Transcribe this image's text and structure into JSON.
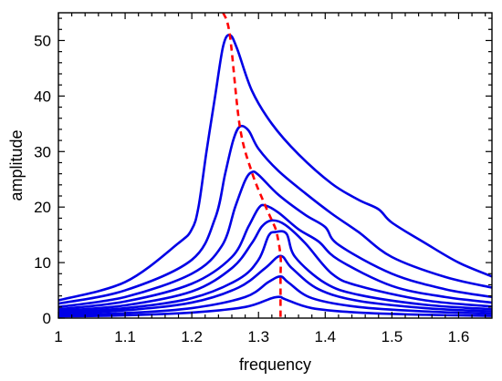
{
  "chart_data": {
    "type": "line",
    "title": "",
    "xlabel": "frequency",
    "ylabel": "amplitude",
    "xlim": [
      1.0,
      1.65
    ],
    "ylim": [
      0,
      55
    ],
    "x_ticks": [
      1,
      1.1,
      1.2,
      1.3,
      1.4,
      1.5,
      1.6
    ],
    "x_tick_labels": [
      "1",
      "1.1",
      "1.2",
      "1.3",
      "1.4",
      "1.5",
      "1.6"
    ],
    "y_ticks": [
      0,
      10,
      20,
      30,
      40,
      50
    ],
    "y_tick_labels": [
      "0",
      "10",
      "20",
      "30",
      "40",
      "50"
    ],
    "grid": false,
    "legend": "none",
    "colors": {
      "curves": "#0000e6",
      "backbone": "#ff0000"
    },
    "series": [
      {
        "points": [
          [
            1.0,
            0.3
          ],
          [
            1.1,
            0.5
          ],
          [
            1.2,
            1.0
          ],
          [
            1.28,
            2.0
          ],
          [
            1.32,
            3.6
          ],
          [
            1.333,
            3.8
          ],
          [
            1.34,
            3.4
          ],
          [
            1.38,
            1.8
          ],
          [
            1.45,
            1.0
          ],
          [
            1.55,
            0.6
          ],
          [
            1.65,
            0.4
          ]
        ]
      },
      {
        "points": [
          [
            1.0,
            0.5
          ],
          [
            1.1,
            0.9
          ],
          [
            1.2,
            1.8
          ],
          [
            1.28,
            3.8
          ],
          [
            1.315,
            6.5
          ],
          [
            1.333,
            7.5
          ],
          [
            1.345,
            6.4
          ],
          [
            1.38,
            3.6
          ],
          [
            1.45,
            2.0
          ],
          [
            1.55,
            1.2
          ],
          [
            1.65,
            0.8
          ]
        ]
      },
      {
        "points": [
          [
            1.0,
            0.8
          ],
          [
            1.1,
            1.4
          ],
          [
            1.2,
            2.8
          ],
          [
            1.27,
            5.5
          ],
          [
            1.31,
            9.0
          ],
          [
            1.333,
            11.2
          ],
          [
            1.35,
            9.0
          ],
          [
            1.39,
            5.2
          ],
          [
            1.45,
            3.1
          ],
          [
            1.55,
            1.8
          ],
          [
            1.65,
            1.2
          ]
        ]
      },
      {
        "points": [
          [
            1.0,
            1.0
          ],
          [
            1.1,
            1.8
          ],
          [
            1.2,
            3.6
          ],
          [
            1.27,
            7.0
          ],
          [
            1.3,
            10.5
          ],
          [
            1.315,
            14.8
          ],
          [
            1.325,
            15.5
          ],
          [
            1.342,
            15.2
          ],
          [
            1.355,
            11.0
          ],
          [
            1.4,
            6.3
          ],
          [
            1.45,
            4.2
          ],
          [
            1.55,
            2.4
          ],
          [
            1.65,
            1.6
          ]
        ]
      },
      {
        "points": [
          [
            1.0,
            1.3
          ],
          [
            1.1,
            2.3
          ],
          [
            1.2,
            4.8
          ],
          [
            1.26,
            9.0
          ],
          [
            1.29,
            13.5
          ],
          [
            1.305,
            16.5
          ],
          [
            1.32,
            17.6
          ],
          [
            1.34,
            16.8
          ],
          [
            1.37,
            13.5
          ],
          [
            1.41,
            8.0
          ],
          [
            1.45,
            5.8
          ],
          [
            1.55,
            3.2
          ],
          [
            1.65,
            2.1
          ]
        ]
      },
      {
        "points": [
          [
            1.0,
            1.6
          ],
          [
            1.1,
            3.0
          ],
          [
            1.2,
            6.2
          ],
          [
            1.26,
            11.0
          ],
          [
            1.285,
            16.5
          ],
          [
            1.3,
            19.8
          ],
          [
            1.31,
            20.3
          ],
          [
            1.33,
            19.0
          ],
          [
            1.36,
            16.0
          ],
          [
            1.39,
            13.8
          ],
          [
            1.42,
            10.5
          ],
          [
            1.5,
            5.8
          ],
          [
            1.58,
            3.8
          ],
          [
            1.65,
            2.8
          ]
        ]
      },
      {
        "points": [
          [
            1.0,
            2.0
          ],
          [
            1.1,
            3.8
          ],
          [
            1.2,
            8.0
          ],
          [
            1.245,
            13.0
          ],
          [
            1.265,
            20.0
          ],
          [
            1.28,
            24.8
          ],
          [
            1.29,
            26.3
          ],
          [
            1.3,
            25.8
          ],
          [
            1.33,
            22.2
          ],
          [
            1.37,
            18.6
          ],
          [
            1.4,
            16.4
          ],
          [
            1.42,
            13.2
          ],
          [
            1.5,
            8.0
          ],
          [
            1.58,
            5.2
          ],
          [
            1.65,
            3.8
          ]
        ]
      },
      {
        "points": [
          [
            1.0,
            2.6
          ],
          [
            1.1,
            5.0
          ],
          [
            1.2,
            10.5
          ],
          [
            1.235,
            18.0
          ],
          [
            1.25,
            26.0
          ],
          [
            1.262,
            32.0
          ],
          [
            1.272,
            34.5
          ],
          [
            1.285,
            33.8
          ],
          [
            1.3,
            30.5
          ],
          [
            1.33,
            26.5
          ],
          [
            1.37,
            22.5
          ],
          [
            1.41,
            18.8
          ],
          [
            1.45,
            15.5
          ],
          [
            1.5,
            11.0
          ],
          [
            1.58,
            7.4
          ],
          [
            1.65,
            5.5
          ]
        ]
      },
      {
        "points": [
          [
            1.0,
            3.2
          ],
          [
            1.1,
            6.5
          ],
          [
            1.18,
            13.5
          ],
          [
            1.2,
            16.0
          ],
          [
            1.21,
            20.0
          ],
          [
            1.222,
            30.0
          ],
          [
            1.235,
            40.0
          ],
          [
            1.247,
            49.0
          ],
          [
            1.257,
            51.0
          ],
          [
            1.268,
            48.5
          ],
          [
            1.29,
            41.0
          ],
          [
            1.32,
            35.0
          ],
          [
            1.36,
            29.5
          ],
          [
            1.41,
            24.2
          ],
          [
            1.45,
            21.3
          ],
          [
            1.48,
            19.6
          ],
          [
            1.5,
            17.2
          ],
          [
            1.55,
            13.5
          ],
          [
            1.6,
            10.0
          ],
          [
            1.65,
            7.5
          ]
        ]
      }
    ],
    "backbone": {
      "points": [
        [
          1.247,
          55
        ],
        [
          1.257,
          51.0
        ],
        [
          1.272,
          34.5
        ],
        [
          1.29,
          26.3
        ],
        [
          1.31,
          20.3
        ],
        [
          1.32,
          17.6
        ],
        [
          1.327,
          15.5
        ],
        [
          1.333,
          11.2
        ],
        [
          1.333,
          7.5
        ],
        [
          1.333,
          3.8
        ],
        [
          1.333,
          0
        ]
      ]
    }
  }
}
